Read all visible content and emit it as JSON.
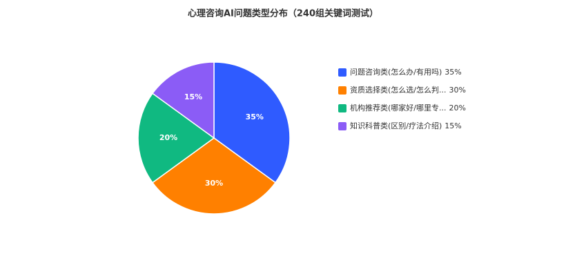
{
  "chart_data": {
    "type": "pie",
    "title": "心理咨询AI问题类型分布（240组关键词测试）",
    "categories": [
      "问题咨询类(怎么办/有用吗)",
      "资质选择类(怎么选/怎么判...",
      "机构推荐类(哪家好/哪里专...",
      "知识科普类(区别/疗法介绍)"
    ],
    "values": [
      35,
      30,
      20,
      15
    ],
    "value_labels": [
      "35%",
      "30%",
      "20%",
      "15%"
    ],
    "colors": [
      "#2f5bff",
      "#ff8000",
      "#10b981",
      "#8b5cf6"
    ],
    "legend": "right"
  }
}
